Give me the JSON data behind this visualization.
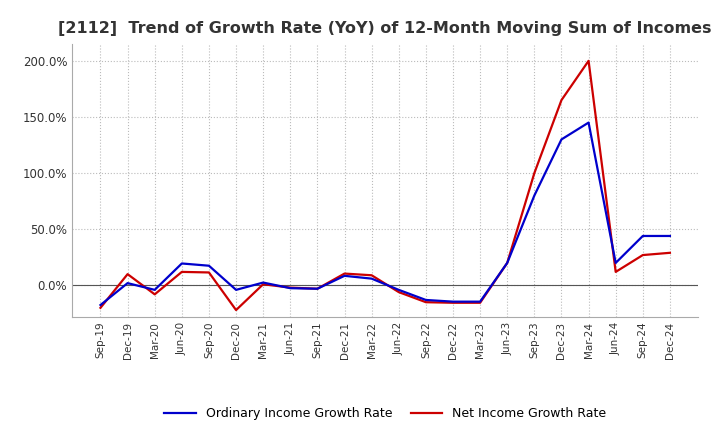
{
  "title": "[2112]  Trend of Growth Rate (YoY) of 12-Month Moving Sum of Incomes",
  "title_fontsize": 11.5,
  "background_color": "#ffffff",
  "grid_color": "#bbbbbb",
  "x_labels": [
    "Sep-19",
    "Dec-19",
    "Mar-20",
    "Jun-20",
    "Sep-20",
    "Dec-20",
    "Mar-21",
    "Jun-21",
    "Sep-21",
    "Dec-21",
    "Mar-22",
    "Jun-22",
    "Sep-22",
    "Dec-22",
    "Mar-23",
    "Jun-23",
    "Sep-23",
    "Dec-23",
    "Mar-24",
    "Jun-24",
    "Sep-24",
    "Dec-24"
  ],
  "ordinary_income": [
    -0.175,
    0.02,
    -0.04,
    0.195,
    0.175,
    -0.04,
    0.025,
    -0.025,
    -0.03,
    0.085,
    0.06,
    -0.04,
    -0.13,
    -0.145,
    -0.145,
    0.2,
    0.8,
    1.3,
    1.45,
    0.2,
    0.44,
    0.44
  ],
  "net_income": [
    -0.2,
    0.1,
    -0.08,
    0.12,
    0.115,
    -0.22,
    0.01,
    -0.02,
    -0.03,
    0.105,
    0.09,
    -0.06,
    -0.15,
    -0.155,
    -0.155,
    0.2,
    1.0,
    1.65,
    2.0,
    0.12,
    0.27,
    0.29
  ],
  "ordinary_color": "#0000cc",
  "net_color": "#cc0000",
  "line_width": 1.6,
  "ylim": [
    -0.28,
    2.15
  ],
  "yticks": [
    0.0,
    0.5,
    1.0,
    1.5,
    2.0
  ],
  "ytick_labels": [
    "0.0%",
    "50.0%",
    "100.0%",
    "150.0%",
    "200.0%"
  ]
}
